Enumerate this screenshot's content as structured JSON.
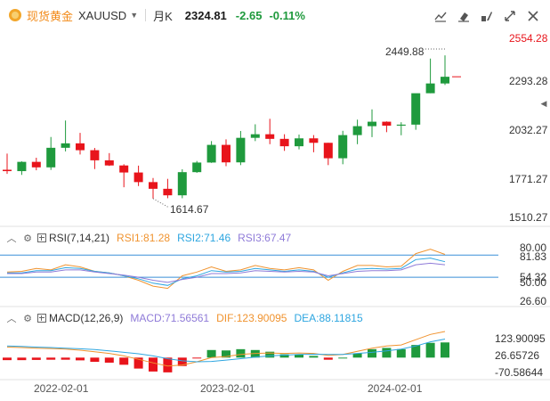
{
  "header": {
    "symbol_name": "现货黄金",
    "symbol_code": "XAUUSD",
    "caret": "▼",
    "period": "月K",
    "price": "2324.81",
    "change": "-2.65",
    "change_pct": "-0.11%",
    "colors": {
      "up": "#1f9a3d",
      "down": "#e8141b",
      "accent": "#f28a18"
    }
  },
  "toolbar": {
    "icons": [
      "draw-line-icon",
      "erase-icon",
      "drawing-tools-icon",
      "expand-icon",
      "close-icon"
    ]
  },
  "price_axis": {
    "ticks": [
      "2554.28",
      "2293.28",
      "2032.27",
      "1771.27",
      "1510.27"
    ]
  },
  "annotations": {
    "high": "2449.88",
    "low": "1614.67"
  },
  "rsi": {
    "title": "RSI(7,14,21)",
    "rsi1": "RSI1:81.28",
    "rsi2": "RSI2:71.46",
    "rsi3": "RSI3:67.47",
    "axis": [
      "80.00",
      "81.83",
      "54.32",
      "50.00",
      "26.60"
    ],
    "colors": {
      "rsi1": "#f0932f",
      "rsi2": "#2ea6e0",
      "rsi3": "#8f7bd8"
    }
  },
  "macd": {
    "title": "MACD(12,26,9)",
    "macd": "MACD:71.56561",
    "dif": "DIF:123.90095",
    "dea": "DEA:88.11815",
    "axis": [
      "123.90095",
      "26.65726",
      "-70.58644"
    ],
    "colors": {
      "macd": "#8f7bd8",
      "dif": "#f0932f",
      "dea": "#2ea6e0"
    }
  },
  "time_axis": [
    "2022-02-01",
    "2023-02-01",
    "2024-02-01"
  ],
  "chart_data": {
    "type": "candlestick",
    "title": "",
    "xlabel": "",
    "ylabel": "",
    "ylim": [
      1510.27,
      2554.28
    ],
    "x": [
      "2021-11",
      "2021-12",
      "2022-01",
      "2022-02",
      "2022-03",
      "2022-04",
      "2022-05",
      "2022-06",
      "2022-07",
      "2022-08",
      "2022-09",
      "2022-10",
      "2022-11",
      "2022-12",
      "2023-01",
      "2023-02",
      "2023-03",
      "2023-04",
      "2023-05",
      "2023-06",
      "2023-07",
      "2023-08",
      "2023-09",
      "2023-10",
      "2023-11",
      "2023-12",
      "2024-01",
      "2024-02",
      "2024-03",
      "2024-04",
      "2024-05"
    ],
    "open": [
      1783,
      1775,
      1829,
      1797,
      1911,
      1937,
      1897,
      1838,
      1808,
      1767,
      1711,
      1672,
      1634,
      1769,
      1825,
      1928,
      1826,
      1969,
      1990,
      1963,
      1920,
      1966,
      1940,
      1850,
      1985,
      2037,
      2063,
      2040,
      2046,
      2229,
      2286
    ],
    "high": [
      1877,
      1832,
      1853,
      1974,
      2070,
      1998,
      1910,
      1880,
      1815,
      1807,
      1735,
      1730,
      1786,
      1834,
      1950,
      1960,
      2009,
      2048,
      2080,
      1990,
      1988,
      1985,
      1940,
      2010,
      2075,
      2135,
      2065,
      2060,
      2222,
      2431,
      2450
    ],
    "close": [
      1775,
      1829,
      1797,
      1911,
      1937,
      1897,
      1838,
      1808,
      1767,
      1711,
      1672,
      1634,
      1769,
      1825,
      1928,
      1826,
      1969,
      1990,
      1963,
      1920,
      1966,
      1940,
      1850,
      1985,
      2037,
      2063,
      2040,
      2046,
      2229,
      2286,
      2325
    ],
    "low": [
      1759,
      1753,
      1780,
      1782,
      1890,
      1872,
      1787,
      1805,
      1681,
      1688,
      1615,
      1617,
      1617,
      1765,
      1823,
      1804,
      1810,
      1950,
      1932,
      1893,
      1902,
      1885,
      1810,
      1815,
      1932,
      1973,
      2002,
      1984,
      2016,
      2229,
      2277
    ],
    "rsi_series": [
      {
        "name": "RSI1",
        "values": [
          57,
          58,
          62,
          60,
          67,
          64,
          58,
          56,
          52,
          46,
          38,
          35,
          52,
          57,
          64,
          58,
          60,
          66,
          62,
          60,
          63,
          60,
          46,
          58,
          66,
          66,
          64,
          65,
          82,
          88,
          81
        ]
      },
      {
        "name": "RSI2",
        "values": [
          56,
          56,
          59,
          59,
          63,
          62,
          58,
          56,
          52,
          48,
          42,
          39,
          48,
          52,
          59,
          57,
          58,
          62,
          60,
          58,
          60,
          58,
          50,
          56,
          61,
          62,
          61,
          62,
          74,
          76,
          71
        ]
      },
      {
        "name": "RSI3",
        "values": [
          55,
          55,
          57,
          57,
          60,
          60,
          57,
          55,
          53,
          50,
          46,
          43,
          47,
          50,
          55,
          55,
          56,
          59,
          58,
          57,
          58,
          57,
          52,
          55,
          58,
          59,
          59,
          60,
          67,
          69,
          67
        ]
      }
    ],
    "macd_series": [
      {
        "name": "DIF",
        "values": [
          50,
          48,
          45,
          43,
          40,
          35,
          28,
          20,
          8,
          -8,
          -25,
          -40,
          -35,
          -20,
          0,
          5,
          15,
          20,
          22,
          20,
          22,
          20,
          10,
          15,
          30,
          45,
          55,
          60,
          85,
          110,
          124
        ]
      },
      {
        "name": "DEA",
        "values": [
          55,
          53,
          50,
          48,
          45,
          42,
          38,
          32,
          25,
          18,
          8,
          -5,
          -15,
          -20,
          -18,
          -12,
          -5,
          2,
          8,
          12,
          15,
          16,
          15,
          15,
          20,
          25,
          32,
          40,
          55,
          75,
          88
        ]
      },
      {
        "name": "MACD",
        "values": [
          -12,
          -12,
          -11,
          -10,
          -10,
          -13,
          -20,
          -24,
          -34,
          -52,
          -66,
          -70,
          -40,
          -1,
          36,
          34,
          40,
          36,
          28,
          16,
          14,
          8,
          -10,
          0,
          20,
          40,
          46,
          40,
          60,
          70,
          72
        ]
      }
    ]
  }
}
